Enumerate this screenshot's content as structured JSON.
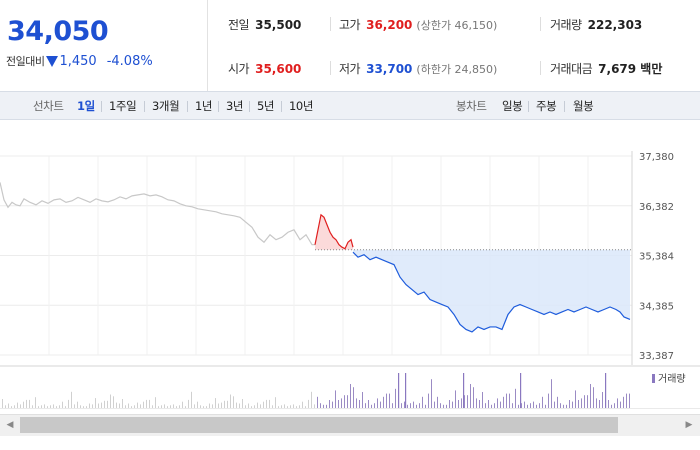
{
  "price": {
    "current": "34,050",
    "change_label": "전일대비",
    "change_amount": "1,450",
    "change_percent": "-4.08%"
  },
  "stats": {
    "prev_close_label": "전일",
    "prev_close": "35,500",
    "high_label": "고가",
    "high": "36,200",
    "upper_limit": "(상한가 46,150)",
    "volume_label": "거래량",
    "volume": "222,303",
    "open_label": "시가",
    "open": "35,600",
    "low_label": "저가",
    "low": "33,700",
    "lower_limit": "(하한가 24,850)",
    "trade_value_label": "거래대금",
    "trade_value": "7,679 백만"
  },
  "toolbar": {
    "line_chart_label": "선차트",
    "periods": [
      "1일",
      "1주일",
      "3개월",
      "1년",
      "3년",
      "5년",
      "10년"
    ],
    "active_period": "1일",
    "candle_chart_label": "봉차트",
    "candles": [
      "일봉",
      "주봉",
      "월봉"
    ]
  },
  "chart_data": {
    "type": "line",
    "y_ticks": [
      "37,380",
      "36,382",
      "35,384",
      "34,385",
      "33,387"
    ],
    "ylim": [
      33387,
      37380
    ],
    "reference_price": 35500,
    "volume_legend": "거래량",
    "series": [
      {
        "color": "#c8c8c8",
        "x": [
          0,
          4,
          8,
          12,
          16,
          20,
          24,
          30,
          36,
          42,
          48,
          54,
          60,
          66,
          72,
          78,
          84,
          90,
          96,
          102,
          108,
          114,
          120,
          126,
          132,
          138,
          144,
          150,
          156,
          162,
          168,
          174,
          180,
          186,
          192,
          198,
          204,
          210,
          216,
          222,
          228,
          234,
          240,
          246,
          252,
          258,
          264,
          270,
          276,
          282,
          288,
          294,
          300,
          306,
          312,
          315
        ],
        "values": [
          36850,
          36500,
          36350,
          36450,
          36400,
          36380,
          36520,
          36450,
          36400,
          36480,
          36430,
          36500,
          36520,
          36450,
          36480,
          36550,
          36500,
          36450,
          36520,
          36480,
          36460,
          36500,
          36560,
          36520,
          36580,
          36600,
          36620,
          36580,
          36600,
          36560,
          36500,
          36480,
          36420,
          36380,
          36360,
          36320,
          36300,
          36280,
          36260,
          36220,
          36200,
          36180,
          36150,
          36050,
          35950,
          35750,
          35650,
          35800,
          35700,
          35750,
          35850,
          35900,
          35700,
          35800,
          35600,
          35600
        ]
      },
      {
        "color": "#e01f1f",
        "x": [
          315,
          318,
          321,
          324,
          327,
          330,
          333,
          336,
          339,
          342,
          345,
          348,
          351,
          353
        ],
        "values": [
          35600,
          35900,
          36200,
          36150,
          36000,
          35850,
          35750,
          35700,
          35600,
          35550,
          35520,
          35650,
          35700,
          35550
        ]
      },
      {
        "color": "#1e5cdc",
        "x": [
          353,
          358,
          364,
          370,
          376,
          382,
          388,
          394,
          400,
          406,
          412,
          418,
          424,
          430,
          436,
          442,
          448,
          454,
          460,
          466,
          472,
          478,
          484,
          490,
          496,
          502,
          508,
          514,
          520,
          526,
          532,
          538,
          544,
          550,
          556,
          562,
          568,
          574,
          580,
          586,
          592,
          598,
          604,
          610,
          616,
          620,
          624,
          630
        ],
        "values": [
          35450,
          35350,
          35400,
          35300,
          35350,
          35300,
          35250,
          35200,
          34950,
          34800,
          34700,
          34600,
          34650,
          34500,
          34450,
          34400,
          34350,
          34200,
          34000,
          33900,
          33850,
          33950,
          33900,
          33950,
          33950,
          33900,
          34200,
          34350,
          34400,
          34350,
          34300,
          34250,
          34200,
          34250,
          34200,
          34250,
          34300,
          34250,
          34300,
          34350,
          34300,
          34250,
          34300,
          34350,
          34300,
          34250,
          34150,
          34100
        ]
      }
    ]
  }
}
